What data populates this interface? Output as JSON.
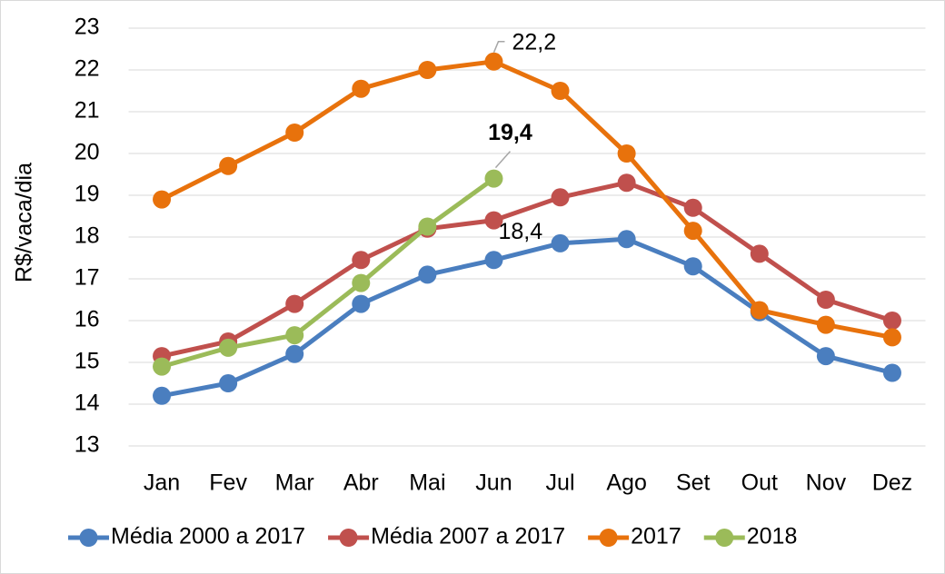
{
  "chart_data": {
    "type": "line",
    "y_label": "R$/vaca/dia",
    "categories": [
      "Jan",
      "Fev",
      "Mar",
      "Abr",
      "Mai",
      "Jun",
      "Jul",
      "Ago",
      "Set",
      "Out",
      "Nov",
      "Dez"
    ],
    "ylim": [
      13,
      23
    ],
    "yticks": [
      13,
      14,
      15,
      16,
      17,
      18,
      19,
      20,
      21,
      22,
      23
    ],
    "grid": true,
    "legend": "bottom",
    "series": [
      {
        "name": "Média 2000 a 2017",
        "color": "#4a7ebf",
        "values": [
          14.2,
          14.5,
          15.2,
          16.4,
          17.1,
          17.45,
          17.85,
          17.95,
          17.3,
          16.2,
          15.15,
          14.75
        ]
      },
      {
        "name": "Média 2007 a 2017",
        "color": "#c0504d",
        "label_color": "#c00000",
        "values": [
          15.15,
          15.5,
          16.4,
          17.45,
          18.2,
          18.4,
          18.95,
          19.3,
          18.7,
          17.6,
          16.5,
          16.0
        ],
        "value_labels": [
          null,
          null,
          null,
          null,
          null,
          "18,4",
          null,
          null,
          null,
          null,
          null,
          null
        ]
      },
      {
        "name": "2017",
        "color": "#e8720c",
        "values": [
          18.9,
          19.7,
          20.5,
          21.55,
          22.0,
          22.2,
          21.5,
          20.0,
          18.15,
          16.25,
          15.9,
          15.6
        ],
        "value_labels": [
          null,
          null,
          null,
          null,
          null,
          "22,2",
          null,
          null,
          null,
          null,
          null,
          null
        ]
      },
      {
        "name": "2018",
        "color": "#9bbb59",
        "values": [
          14.9,
          15.35,
          15.65,
          16.9,
          18.25,
          19.4,
          null,
          null,
          null,
          null,
          null,
          null
        ],
        "value_labels": [
          null,
          null,
          null,
          null,
          null,
          "19,4",
          null,
          null,
          null,
          null,
          null,
          null
        ]
      }
    ]
  }
}
